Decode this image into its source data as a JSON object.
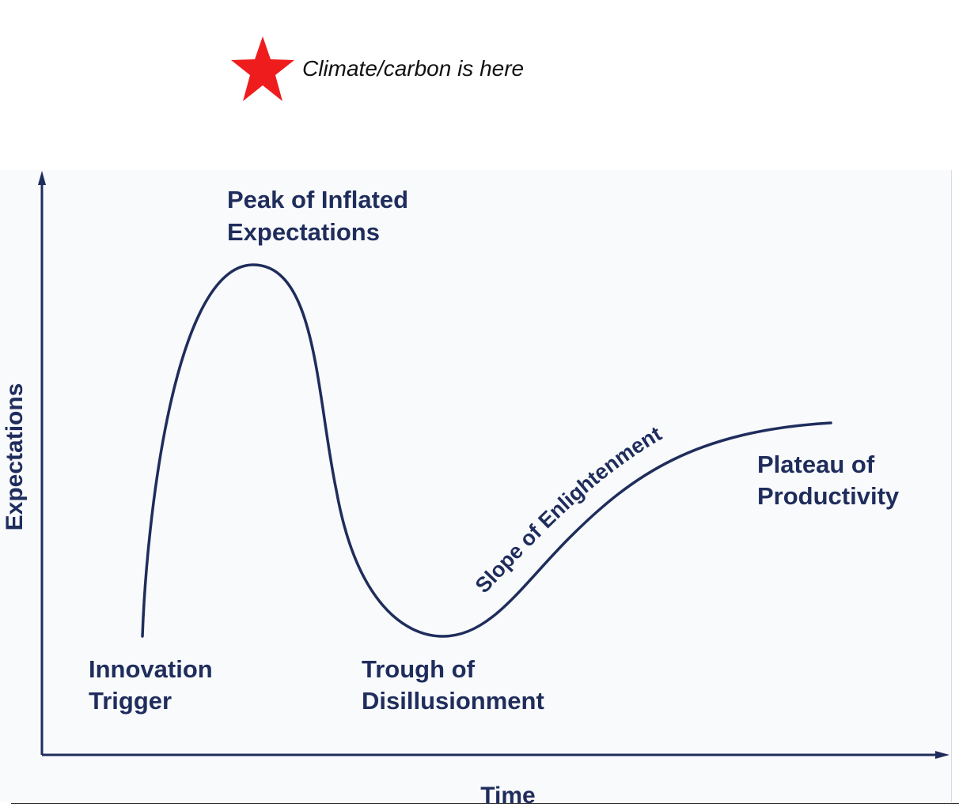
{
  "annotation": {
    "icon": "star-icon",
    "icon_color": "#ee1c1c",
    "text": "Climate/carbon is here"
  },
  "axes": {
    "y_label": "Expectations",
    "x_label": "Time"
  },
  "phases": {
    "innovation_trigger": [
      "Innovation",
      "Trigger"
    ],
    "peak": [
      "Peak of Inflated",
      "Expectations"
    ],
    "trough": [
      "Trough of",
      "Disillusionment"
    ],
    "slope": "Slope of Enlightenment",
    "plateau": [
      "Plateau of",
      "Productivity"
    ]
  },
  "colors": {
    "curve": "#1f2d5c",
    "label": "#1f2d5c",
    "panel_background": "#f9fafc"
  }
}
